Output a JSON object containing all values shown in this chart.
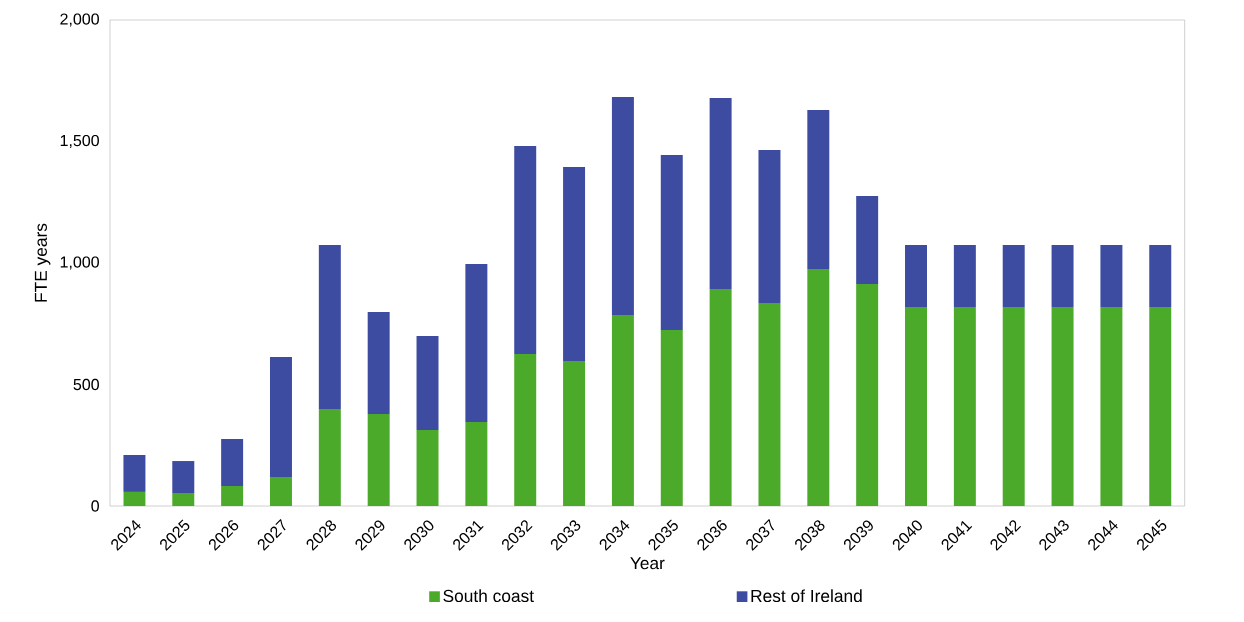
{
  "chart_data": {
    "type": "bar",
    "stacked": true,
    "xlabel": "Year",
    "ylabel": "FTE years",
    "categories": [
      "2024",
      "2025",
      "2026",
      "2027",
      "2028",
      "2029",
      "2030",
      "2031",
      "2032",
      "2033",
      "2034",
      "2035",
      "2036",
      "2037",
      "2038",
      "2039",
      "2040",
      "2041",
      "2042",
      "2043",
      "2044",
      "2045"
    ],
    "series": [
      {
        "name": "South coast",
        "color": "#4caa2a",
        "values": [
          58,
          53,
          82,
          119,
          399,
          379,
          313,
          346,
          626,
          597,
          786,
          724,
          893,
          835,
          975,
          914,
          819,
          819,
          819,
          819,
          819,
          819
        ]
      },
      {
        "name": "Rest of Ireland",
        "color": "#3d4ba0",
        "values": [
          152,
          132,
          194,
          494,
          675,
          419,
          387,
          650,
          855,
          798,
          897,
          720,
          786,
          630,
          655,
          362,
          255,
          255,
          255,
          255,
          255,
          255
        ]
      }
    ],
    "ylim": [
      0,
      2000
    ],
    "yticks": [
      0,
      {
        "value": 500,
        "label": "500"
      },
      {
        "value": 1000,
        "label": "1,000"
      },
      {
        "value": 1500,
        "label": "1,500"
      },
      {
        "value": 2000,
        "label": "2,000"
      }
    ],
    "grid": false,
    "legend": "bottom"
  }
}
